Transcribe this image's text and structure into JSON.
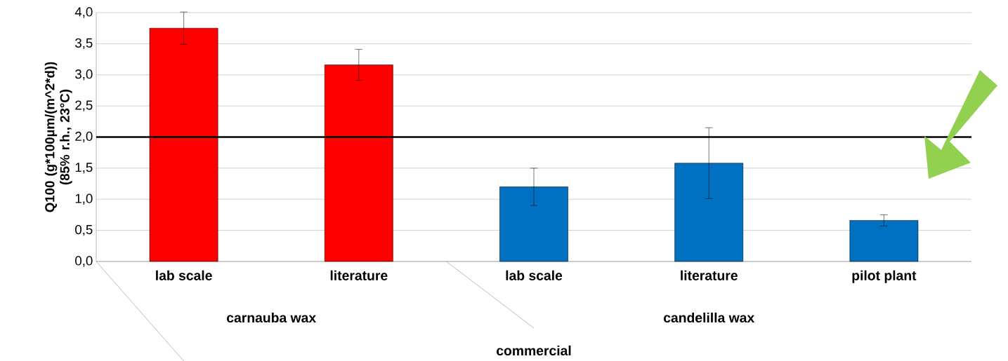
{
  "chart_data": {
    "type": "bar",
    "ylabel": "Q100 (g*100µm/(m^2*d)) (85% r.h., 23°C)",
    "categories": [
      "lab scale",
      "literature",
      "lab scale",
      "literature",
      "pilot plant"
    ],
    "values": [
      3.75,
      3.16,
      1.2,
      1.58,
      0.66
    ],
    "colors": [
      "#ff0000",
      "#ff0000",
      "#0070c0",
      "#0070c0",
      "#0070c0"
    ],
    "errors": [
      0.26,
      0.25,
      0.3,
      0.57,
      0.09
    ],
    "ylim": [
      0,
      4
    ],
    "yticks": [
      {
        "value": 0,
        "label": "0,0"
      },
      {
        "value": 0.5,
        "label": "0,5"
      },
      {
        "value": 1,
        "label": "1,0"
      },
      {
        "value": 1.5,
        "label": "1,5"
      },
      {
        "value": 2,
        "label": "2,0"
      },
      {
        "value": 2.5,
        "label": "2,5"
      },
      {
        "value": 3,
        "label": "3,0"
      },
      {
        "value": 3.5,
        "label": "3,5"
      },
      {
        "value": 4,
        "label": "4,0"
      }
    ],
    "grid": "y",
    "ref_lines": [
      {
        "axis": "y",
        "value": 2.0,
        "color": "#000000"
      }
    ],
    "annotations": [
      "carnauba wax",
      "candelilla wax",
      "commercial"
    ]
  }
}
